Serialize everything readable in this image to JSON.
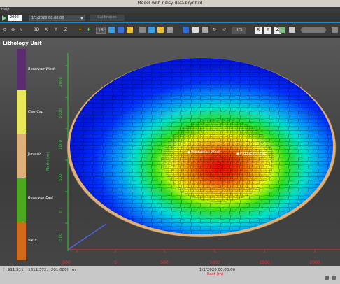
{
  "window": {
    "title": "Model-with-noisy-data.brynhild"
  },
  "menu": {
    "help": "Help"
  },
  "timebar": {
    "step": "2000",
    "datetime": "1/1/2020 00:00:00",
    "calibration": "Calibration"
  },
  "toolbar": {
    "view_3d": "3D",
    "axis_x": "X",
    "axis_y": "Y",
    "axis_z": "Z",
    "zscale": "15",
    "hfs": "HFS",
    "cube_x": "X",
    "cube_y": "Y",
    "cube_z": "Z"
  },
  "legend": {
    "title": "Lithology Unit",
    "units": [
      {
        "label": "Reservoir West",
        "color": "#5c2d6e"
      },
      {
        "label": "Clay Cap",
        "color": "#e8e85a"
      },
      {
        "label": "Jurassic",
        "color": "#e0b07a"
      },
      {
        "label": "Reservoir East",
        "color": "#4ca81e"
      },
      {
        "label": "Vault",
        "color": "#d26a1a"
      }
    ]
  },
  "wells": {
    "west": "Production West",
    "east": "Production East"
  },
  "x_axis": {
    "ticks": [
      "-500",
      "0",
      "500",
      "1000",
      "1500",
      "2000"
    ],
    "title": "East (m)"
  },
  "y_axis": {
    "ticks": [
      "-500",
      "0",
      "500",
      "1000",
      "1500",
      "2000"
    ],
    "title": "North (m)"
  },
  "status": {
    "x": "911.511,",
    "y": "1811.372,",
    "z": "201.000) m",
    "time": "1/1/2020 00:00:00",
    "open_paren": "("
  },
  "colors": {
    "accent": "#1c8ad0",
    "background_top": "#595959",
    "property_low": "#0018ff",
    "property_high": "#ff0000"
  }
}
